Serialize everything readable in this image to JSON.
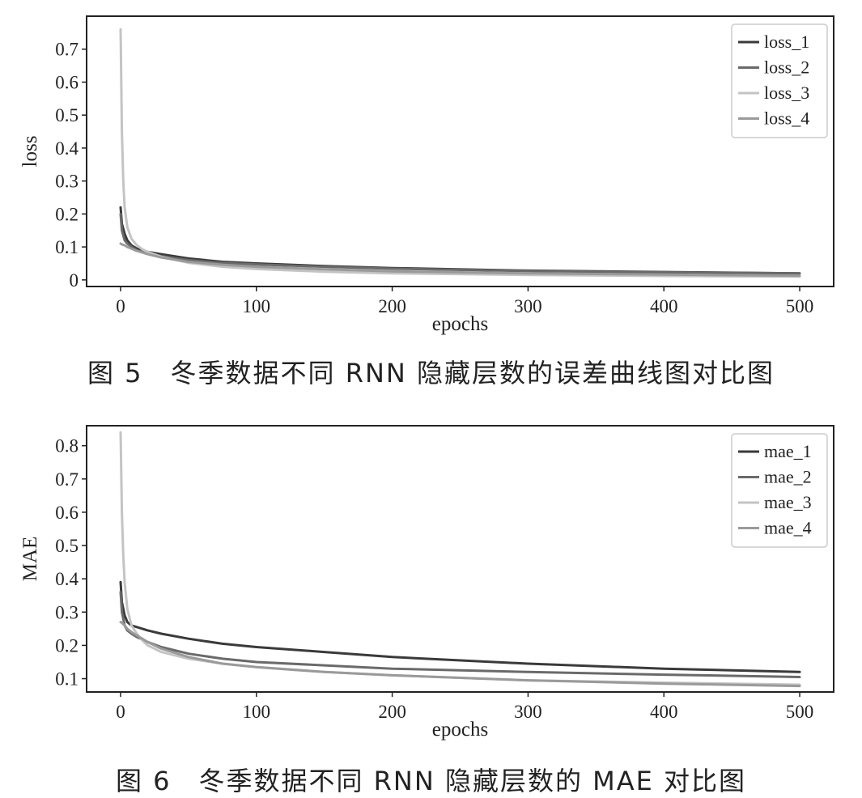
{
  "chart_data": [
    {
      "type": "line",
      "caption": "图 5　冬季数据不同 RNN 隐藏层数的误差曲线图对比图",
      "xlabel": "epochs",
      "ylabel": "loss",
      "xlim": [
        -25,
        525
      ],
      "ylim": [
        -0.02,
        0.8
      ],
      "xticks": [
        0,
        100,
        200,
        300,
        400,
        500
      ],
      "yticks": [
        0,
        0.1,
        0.2,
        0.3,
        0.4,
        0.5,
        0.6,
        0.7
      ],
      "ytick_labels": [
        "0",
        "0.1",
        "0.2",
        "0.3",
        "0.4",
        "0.5",
        "0.6",
        "0.7"
      ],
      "legend_position": "top-right",
      "series": [
        {
          "name": "loss_1",
          "color": "#3a3a3a",
          "x": [
            0,
            1,
            3,
            5,
            8,
            12,
            20,
            30,
            50,
            75,
            100,
            150,
            200,
            300,
            400,
            500
          ],
          "y": [
            0.22,
            0.17,
            0.14,
            0.12,
            0.105,
            0.095,
            0.085,
            0.078,
            0.065,
            0.055,
            0.05,
            0.042,
            0.036,
            0.028,
            0.024,
            0.02
          ]
        },
        {
          "name": "loss_2",
          "color": "#6a6a6a",
          "x": [
            0,
            1,
            3,
            5,
            8,
            12,
            20,
            30,
            50,
            75,
            100,
            150,
            200,
            300,
            400,
            500
          ],
          "y": [
            0.2,
            0.15,
            0.12,
            0.11,
            0.1,
            0.09,
            0.08,
            0.072,
            0.06,
            0.052,
            0.047,
            0.04,
            0.034,
            0.027,
            0.023,
            0.02
          ]
        },
        {
          "name": "loss_3",
          "color": "#c4c4c4",
          "x": [
            0,
            1,
            2,
            3,
            5,
            8,
            12,
            16,
            20,
            30,
            50,
            75,
            100,
            150,
            200,
            300,
            400,
            500
          ],
          "y": [
            0.76,
            0.45,
            0.3,
            0.22,
            0.16,
            0.125,
            0.105,
            0.093,
            0.085,
            0.07,
            0.052,
            0.04,
            0.033,
            0.025,
            0.02,
            0.015,
            0.012,
            0.01
          ]
        },
        {
          "name": "loss_4",
          "color": "#9a9a9a",
          "x": [
            0,
            1,
            3,
            5,
            8,
            12,
            20,
            30,
            50,
            75,
            100,
            150,
            200,
            300,
            400,
            500
          ],
          "y": [
            0.11,
            0.108,
            0.105,
            0.1,
            0.095,
            0.088,
            0.078,
            0.068,
            0.055,
            0.046,
            0.04,
            0.032,
            0.026,
            0.02,
            0.016,
            0.013
          ]
        }
      ]
    },
    {
      "type": "line",
      "caption": "图 6　冬季数据不同 RNN 隐藏层数的 MAE 对比图",
      "xlabel": "epochs",
      "ylabel": "MAE",
      "xlim": [
        -25,
        525
      ],
      "ylim": [
        0.06,
        0.86
      ],
      "xticks": [
        0,
        100,
        200,
        300,
        400,
        500
      ],
      "yticks": [
        0.1,
        0.2,
        0.3,
        0.4,
        0.5,
        0.6,
        0.7,
        0.8
      ],
      "ytick_labels": [
        "0.1",
        "0.2",
        "0.3",
        "0.4",
        "0.5",
        "0.6",
        "0.7",
        "0.8"
      ],
      "legend_position": "top-right",
      "series": [
        {
          "name": "mae_1",
          "color": "#3a3a3a",
          "x": [
            0,
            1,
            3,
            5,
            8,
            12,
            20,
            30,
            50,
            75,
            100,
            150,
            200,
            300,
            400,
            500
          ],
          "y": [
            0.39,
            0.33,
            0.29,
            0.27,
            0.26,
            0.255,
            0.245,
            0.235,
            0.22,
            0.205,
            0.195,
            0.18,
            0.165,
            0.145,
            0.13,
            0.12
          ]
        },
        {
          "name": "mae_2",
          "color": "#6a6a6a",
          "x": [
            0,
            1,
            3,
            5,
            8,
            12,
            20,
            30,
            50,
            75,
            100,
            150,
            200,
            300,
            400,
            500
          ],
          "y": [
            0.36,
            0.3,
            0.26,
            0.245,
            0.235,
            0.225,
            0.21,
            0.195,
            0.175,
            0.16,
            0.15,
            0.14,
            0.13,
            0.12,
            0.112,
            0.105
          ]
        },
        {
          "name": "mae_3",
          "color": "#c4c4c4",
          "x": [
            0,
            1,
            2,
            3,
            5,
            8,
            12,
            16,
            20,
            30,
            50,
            75,
            100,
            150,
            200,
            300,
            400,
            500
          ],
          "y": [
            0.84,
            0.6,
            0.47,
            0.39,
            0.31,
            0.26,
            0.235,
            0.215,
            0.2,
            0.18,
            0.16,
            0.145,
            0.135,
            0.12,
            0.11,
            0.095,
            0.088,
            0.082
          ]
        },
        {
          "name": "mae_4",
          "color": "#9a9a9a",
          "x": [
            0,
            1,
            3,
            5,
            8,
            12,
            20,
            30,
            50,
            75,
            100,
            150,
            200,
            300,
            400,
            500
          ],
          "y": [
            0.27,
            0.268,
            0.26,
            0.25,
            0.24,
            0.23,
            0.21,
            0.19,
            0.165,
            0.145,
            0.135,
            0.12,
            0.11,
            0.095,
            0.085,
            0.078
          ]
        }
      ]
    }
  ]
}
